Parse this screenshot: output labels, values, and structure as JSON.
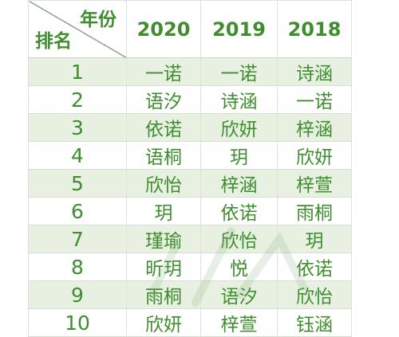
{
  "table": {
    "corner": {
      "column_header": "年份",
      "row_header": "排名"
    },
    "columns": [
      "2020",
      "2019",
      "2018"
    ],
    "rows": [
      {
        "rank": "1",
        "cells": [
          "一诺",
          "一诺",
          "诗涵"
        ]
      },
      {
        "rank": "2",
        "cells": [
          "语汐",
          "诗涵",
          "一诺"
        ]
      },
      {
        "rank": "3",
        "cells": [
          "依诺",
          "欣妍",
          "梓涵"
        ]
      },
      {
        "rank": "4",
        "cells": [
          "语桐",
          "玥",
          "欣妍"
        ]
      },
      {
        "rank": "5",
        "cells": [
          "欣怡",
          "梓涵",
          "梓萱"
        ]
      },
      {
        "rank": "6",
        "cells": [
          "玥",
          "依诺",
          "雨桐"
        ]
      },
      {
        "rank": "7",
        "cells": [
          "瑾瑜",
          "欣怡",
          "玥"
        ]
      },
      {
        "rank": "8",
        "cells": [
          "昕玥",
          "悦",
          "依诺"
        ]
      },
      {
        "rank": "9",
        "cells": [
          "雨桐",
          "语汐",
          "欣怡"
        ]
      },
      {
        "rank": "10",
        "cells": [
          "欣妍",
          "梓萱",
          "钰涵"
        ]
      }
    ]
  },
  "colors": {
    "text_green": "#3e8e2f",
    "row_stripe": "#e8f1e1",
    "row_plain": "#ffffff"
  }
}
